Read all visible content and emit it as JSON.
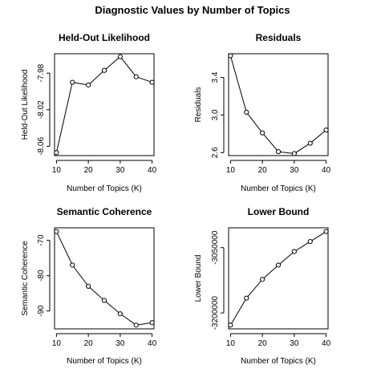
{
  "page": {
    "title": "Diagnostic Values by Number of Topics"
  },
  "chart_data": [
    {
      "type": "line",
      "title": "Held-Out Likelihood",
      "xlabel": "Number of Topics (K)",
      "ylabel": "Held-Out Likelihood",
      "x": [
        10,
        15,
        20,
        25,
        30,
        35,
        40
      ],
      "values": [
        -8.067,
        -7.99,
        -7.993,
        -7.977,
        -7.962,
        -7.984,
        -7.99
      ],
      "xticks": [
        "10",
        "20",
        "30",
        "40"
      ],
      "yticks": [
        "-8.06",
        "-8.02",
        "-7.98"
      ],
      "xlim": [
        9.4,
        40.6
      ],
      "ylim": [
        -8.0702,
        -7.9588
      ],
      "marker": "open-circle",
      "color": "#000000"
    },
    {
      "type": "line",
      "title": "Residuals",
      "xlabel": "Number of Topics (K)",
      "ylabel": "Residuals",
      "x": [
        10,
        15,
        20,
        25,
        30,
        35,
        40
      ],
      "values": [
        3.63,
        3.03,
        2.81,
        2.61,
        2.59,
        2.7,
        2.84
      ],
      "xticks": [
        "10",
        "20",
        "30",
        "40"
      ],
      "yticks": [
        "2.6",
        "3.0",
        "3.4"
      ],
      "xlim": [
        9.4,
        40.6
      ],
      "ylim": [
        2.5684,
        3.6516
      ],
      "marker": "open-circle",
      "color": "#000000"
    },
    {
      "type": "line",
      "title": "Semantic Coherence",
      "xlabel": "Number of Topics (K)",
      "ylabel": "Semantic Coherence",
      "x": [
        10,
        15,
        20,
        25,
        30,
        35,
        40
      ],
      "values": [
        -67.5,
        -77.0,
        -83.0,
        -87.0,
        -90.8,
        -94.0,
        -93.3
      ],
      "xticks": [
        "10",
        "20",
        "30",
        "40"
      ],
      "yticks": [
        "-90",
        "-80",
        "-70"
      ],
      "xlim": [
        9.4,
        40.6
      ],
      "ylim": [
        -95.06,
        -66.44
      ],
      "marker": "open-circle",
      "color": "#000000"
    },
    {
      "type": "line",
      "title": "Lower Bound",
      "xlabel": "Number of Topics (K)",
      "ylabel": "Lower Bound",
      "x": [
        10,
        15,
        20,
        25,
        30,
        35,
        40
      ],
      "values": [
        -3228000,
        -3166000,
        -3123000,
        -3090000,
        -3059000,
        -3036000,
        -3013000
      ],
      "xticks": [
        "10",
        "20",
        "30",
        "40"
      ],
      "yticks": [
        "-3200000",
        "-3050000"
      ],
      "ytick_values": [
        -3200000,
        -3050000
      ],
      "xlim": [
        9.4,
        40.6
      ],
      "ylim": [
        -3236600,
        -3004400
      ],
      "marker": "open-circle",
      "color": "#000000"
    }
  ]
}
